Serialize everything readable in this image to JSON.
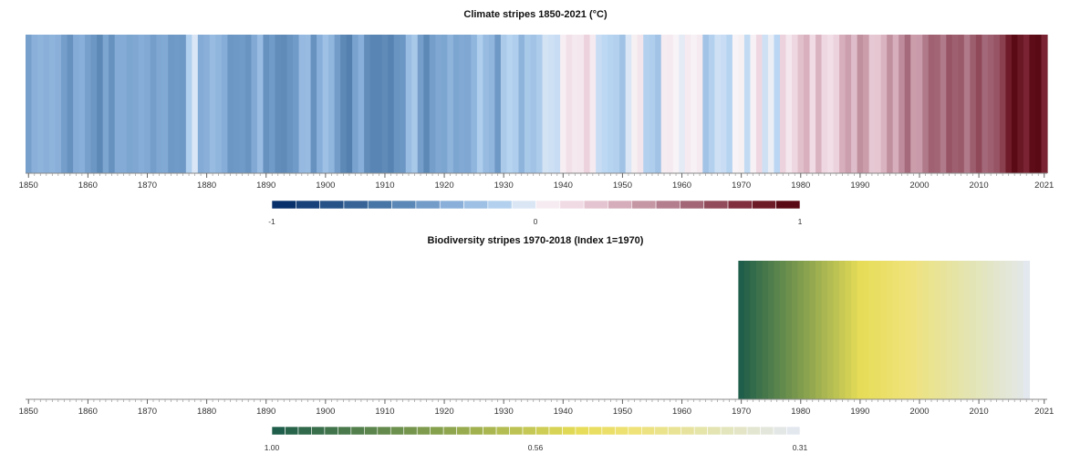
{
  "chart_data": [
    {
      "type": "heatmap",
      "title": "Climate stripes 1850-2021 (°C)",
      "x_range": [
        1850,
        2021
      ],
      "x_ticks": [
        "1850",
        "1860",
        "1870",
        "1880",
        "1890",
        "1900",
        "1910",
        "1920",
        "1930",
        "1940",
        "1950",
        "1960",
        "1970",
        "1980",
        "1990",
        "2000",
        "2010",
        "2021"
      ],
      "x_tick_values": [
        1850,
        1860,
        1870,
        1880,
        1890,
        1900,
        1910,
        1920,
        1930,
        1940,
        1950,
        1960,
        1970,
        1980,
        1990,
        2000,
        2010,
        2021
      ],
      "years": [
        1850,
        1851,
        1852,
        1853,
        1854,
        1855,
        1856,
        1857,
        1858,
        1859,
        1860,
        1861,
        1862,
        1863,
        1864,
        1865,
        1866,
        1867,
        1868,
        1869,
        1870,
        1871,
        1872,
        1873,
        1874,
        1875,
        1876,
        1877,
        1878,
        1879,
        1880,
        1881,
        1882,
        1883,
        1884,
        1885,
        1886,
        1887,
        1888,
        1889,
        1890,
        1891,
        1892,
        1893,
        1894,
        1895,
        1896,
        1897,
        1898,
        1899,
        1900,
        1901,
        1902,
        1903,
        1904,
        1905,
        1906,
        1907,
        1908,
        1909,
        1910,
        1911,
        1912,
        1913,
        1914,
        1915,
        1916,
        1917,
        1918,
        1919,
        1920,
        1921,
        1922,
        1923,
        1924,
        1925,
        1926,
        1927,
        1928,
        1929,
        1930,
        1931,
        1932,
        1933,
        1934,
        1935,
        1936,
        1937,
        1938,
        1939,
        1940,
        1941,
        1942,
        1943,
        1944,
        1945,
        1946,
        1947,
        1948,
        1949,
        1950,
        1951,
        1952,
        1953,
        1954,
        1955,
        1956,
        1957,
        1958,
        1959,
        1960,
        1961,
        1962,
        1963,
        1964,
        1965,
        1966,
        1967,
        1968,
        1969,
        1970,
        1971,
        1972,
        1973,
        1974,
        1975,
        1976,
        1977,
        1978,
        1979,
        1980,
        1981,
        1982,
        1983,
        1984,
        1985,
        1986,
        1987,
        1988,
        1989,
        1990,
        1991,
        1992,
        1993,
        1994,
        1995,
        1996,
        1997,
        1998,
        1999,
        2000,
        2001,
        2002,
        2003,
        2004,
        2005,
        2006,
        2007,
        2008,
        2009,
        2010,
        2011,
        2012,
        2013,
        2014,
        2015,
        2016,
        2017,
        2018,
        2019,
        2020,
        2021
      ],
      "values": [
        -0.41,
        -0.33,
        -0.31,
        -0.33,
        -0.31,
        -0.33,
        -0.42,
        -0.48,
        -0.36,
        -0.34,
        -0.41,
        -0.46,
        -0.52,
        -0.39,
        -0.48,
        -0.36,
        -0.36,
        -0.39,
        -0.38,
        -0.35,
        -0.37,
        -0.42,
        -0.38,
        -0.37,
        -0.45,
        -0.44,
        -0.45,
        -0.15,
        -0.05,
        -0.36,
        -0.33,
        -0.27,
        -0.3,
        -0.35,
        -0.46,
        -0.45,
        -0.44,
        -0.47,
        -0.37,
        -0.26,
        -0.48,
        -0.44,
        -0.5,
        -0.51,
        -0.47,
        -0.44,
        -0.28,
        -0.27,
        -0.48,
        -0.34,
        -0.24,
        -0.3,
        -0.43,
        -0.52,
        -0.56,
        -0.4,
        -0.34,
        -0.5,
        -0.54,
        -0.54,
        -0.51,
        -0.55,
        -0.47,
        -0.46,
        -0.26,
        -0.19,
        -0.42,
        -0.52,
        -0.42,
        -0.38,
        -0.39,
        -0.31,
        -0.39,
        -0.37,
        -0.38,
        -0.3,
        -0.16,
        -0.27,
        -0.3,
        -0.45,
        -0.18,
        -0.13,
        -0.16,
        -0.31,
        -0.19,
        -0.22,
        -0.17,
        -0.06,
        -0.07,
        -0.08,
        0.03,
        0.11,
        0.06,
        0.07,
        0.18,
        0.05,
        -0.08,
        -0.1,
        -0.13,
        -0.14,
        -0.23,
        -0.05,
        0.02,
        0.08,
        -0.14,
        -0.16,
        -0.22,
        0.04,
        0.05,
        0.0,
        -0.03,
        0.05,
        0.01,
        0.05,
        -0.22,
        -0.14,
        -0.07,
        -0.08,
        -0.13,
        0.0,
        0.02,
        -0.09,
        0.01,
        0.16,
        -0.07,
        -0.02,
        -0.11,
        0.18,
        0.07,
        0.16,
        0.26,
        0.32,
        0.14,
        0.31,
        0.16,
        0.12,
        0.18,
        0.33,
        0.39,
        0.27,
        0.45,
        0.4,
        0.22,
        0.23,
        0.31,
        0.45,
        0.33,
        0.47,
        0.6,
        0.4,
        0.41,
        0.54,
        0.63,
        0.62,
        0.54,
        0.68,
        0.64,
        0.66,
        0.54,
        0.65,
        0.72,
        0.61,
        0.64,
        0.68,
        0.75,
        0.9,
        1.01,
        0.92,
        0.85,
        0.98,
        1.02,
        0.85
      ],
      "colorbar": {
        "min_label": "-1",
        "mid_label": "0",
        "max_label": "1"
      },
      "colors": {
        "cold_end": "#08306b",
        "mid": "#ffffff",
        "warm_end": "#67000d"
      }
    },
    {
      "type": "heatmap",
      "title": "Biodiversity stripes 1970-2018 (Index 1=1970)",
      "x_range": [
        1850,
        2021
      ],
      "x_ticks": [
        "1850",
        "1860",
        "1870",
        "1880",
        "1890",
        "1900",
        "1910",
        "1920",
        "1930",
        "1940",
        "1950",
        "1960",
        "1970",
        "1980",
        "1990",
        "2000",
        "2010",
        "2021"
      ],
      "x_tick_values": [
        1850,
        1860,
        1870,
        1880,
        1890,
        1900,
        1910,
        1920,
        1930,
        1940,
        1950,
        1960,
        1970,
        1980,
        1990,
        2000,
        2010,
        2021
      ],
      "years": [
        1970,
        1971,
        1972,
        1973,
        1974,
        1975,
        1976,
        1977,
        1978,
        1979,
        1980,
        1981,
        1982,
        1983,
        1984,
        1985,
        1986,
        1987,
        1988,
        1989,
        1990,
        1991,
        1992,
        1993,
        1994,
        1995,
        1996,
        1997,
        1998,
        1999,
        2000,
        2001,
        2002,
        2003,
        2004,
        2005,
        2006,
        2007,
        2008,
        2009,
        2010,
        2011,
        2012,
        2013,
        2014,
        2015,
        2016,
        2017,
        2018
      ],
      "values": [
        1.0,
        0.98,
        0.96,
        0.94,
        0.92,
        0.9,
        0.88,
        0.86,
        0.84,
        0.82,
        0.8,
        0.78,
        0.76,
        0.74,
        0.72,
        0.7,
        0.68,
        0.66,
        0.64,
        0.62,
        0.6,
        0.59,
        0.58,
        0.57,
        0.56,
        0.55,
        0.54,
        0.53,
        0.52,
        0.51,
        0.5,
        0.49,
        0.48,
        0.47,
        0.46,
        0.45,
        0.44,
        0.43,
        0.42,
        0.41,
        0.4,
        0.39,
        0.38,
        0.37,
        0.36,
        0.35,
        0.34,
        0.33,
        0.31
      ],
      "colorbar": {
        "min_label": "1.00",
        "mid_label": "0.56",
        "max_label": "0.31"
      },
      "colors": {
        "high_end": "#1f5e4a",
        "mid": "#f2e05a",
        "low_end": "#e3e8ef"
      }
    }
  ]
}
